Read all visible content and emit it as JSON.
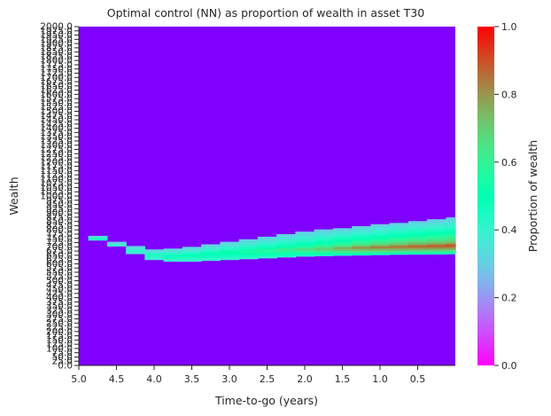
{
  "chart_data": {
    "type": "heatmap",
    "title": "Optimal control (NN) as proportion of wealth in asset T30",
    "xlabel": "Time-to-go (years)",
    "ylabel": "Wealth",
    "colorbar_label": "Proportion of wealth",
    "x_tick_labels": [
      "5.0",
      "4.5",
      "4.0",
      "3.5",
      "3.0",
      "2.5",
      "2.0",
      "1.5",
      "1.0",
      "0.5"
    ],
    "x_tick_values": [
      5.0,
      4.5,
      4.0,
      3.5,
      3.0,
      2.5,
      2.0,
      1.5,
      1.0,
      0.5
    ],
    "y_tick_labels": [
      "0.0",
      "25.0",
      "50.0",
      "75.0",
      "100.0",
      "125.0",
      "150.0",
      "175.0",
      "200.0",
      "225.0",
      "250.0",
      "275.0",
      "300.0",
      "325.0",
      "350.0",
      "375.0",
      "400.0",
      "425.0",
      "450.0",
      "475.0",
      "500.0",
      "525.0",
      "550.0",
      "575.0",
      "600.0",
      "625.0",
      "650.0",
      "675.0",
      "700.0",
      "725.0",
      "750.0",
      "775.0",
      "800.0",
      "825.0",
      "850.0",
      "875.0",
      "900.0",
      "925.0",
      "950.0",
      "975.0",
      "1000.0",
      "1025.0",
      "1050.0",
      "1075.0",
      "1100.0",
      "1125.0",
      "1150.0",
      "1175.0",
      "1200.0",
      "1225.0",
      "1250.0",
      "1275.0",
      "1300.0",
      "1325.0",
      "1350.0",
      "1375.0",
      "1400.0",
      "1425.0",
      "1450.0",
      "1475.0",
      "1500.0",
      "1525.0",
      "1550.0",
      "1575.0",
      "1600.0",
      "1625.0",
      "1650.0",
      "1675.0",
      "1700.0",
      "1725.0",
      "1750.0",
      "1775.0",
      "1800.0",
      "1825.0",
      "1850.0",
      "1875.0",
      "1900.0",
      "1925.0",
      "1950.0",
      "1975.0",
      "2000.0"
    ],
    "x_range": [
      5.0,
      0.0
    ],
    "y_range": [
      0,
      2000
    ],
    "colorbar_ticks": [
      "0.0",
      "0.2",
      "0.4",
      "0.6",
      "0.8",
      "1.0"
    ],
    "colorbar_range": [
      0.0,
      1.0
    ],
    "colormap": "rainbow",
    "background_value": 0.0,
    "time_columns": [
      4.75,
      4.5,
      4.25,
      4.0,
      3.75,
      3.5,
      3.25,
      3.0,
      2.75,
      2.5,
      2.25,
      2.0,
      1.75,
      1.5,
      1.25,
      1.0,
      0.75,
      0.5,
      0.25,
      0.0
    ],
    "band": [
      {
        "t": 4.75,
        "w_low": 740,
        "w_high": 765,
        "peak_wealth": 752,
        "peak_value": 0.48
      },
      {
        "t": 4.5,
        "w_low": 705,
        "w_high": 730,
        "peak_wealth": 718,
        "peak_value": 0.38
      },
      {
        "t": 4.25,
        "w_low": 660,
        "w_high": 705,
        "peak_wealth": 684,
        "peak_value": 0.42
      },
      {
        "t": 4.0,
        "w_low": 625,
        "w_high": 685,
        "peak_wealth": 660,
        "peak_value": 0.46
      },
      {
        "t": 3.75,
        "w_low": 615,
        "w_high": 690,
        "peak_wealth": 655,
        "peak_value": 0.49
      },
      {
        "t": 3.5,
        "w_low": 615,
        "w_high": 700,
        "peak_wealth": 660,
        "peak_value": 0.5
      },
      {
        "t": 3.25,
        "w_low": 620,
        "w_high": 715,
        "peak_wealth": 668,
        "peak_value": 0.52
      },
      {
        "t": 3.0,
        "w_low": 625,
        "w_high": 730,
        "peak_wealth": 675,
        "peak_value": 0.54
      },
      {
        "t": 2.75,
        "w_low": 630,
        "w_high": 745,
        "peak_wealth": 680,
        "peak_value": 0.57
      },
      {
        "t": 2.5,
        "w_low": 635,
        "w_high": 760,
        "peak_wealth": 685,
        "peak_value": 0.6
      },
      {
        "t": 2.25,
        "w_low": 640,
        "w_high": 775,
        "peak_wealth": 690,
        "peak_value": 0.63
      },
      {
        "t": 2.0,
        "w_low": 645,
        "w_high": 790,
        "peak_wealth": 692,
        "peak_value": 0.67
      },
      {
        "t": 1.75,
        "w_low": 648,
        "w_high": 800,
        "peak_wealth": 695,
        "peak_value": 0.72
      },
      {
        "t": 1.5,
        "w_low": 650,
        "w_high": 810,
        "peak_wealth": 697,
        "peak_value": 0.78
      },
      {
        "t": 1.25,
        "w_low": 652,
        "w_high": 820,
        "peak_wealth": 700,
        "peak_value": 0.83
      },
      {
        "t": 1.0,
        "w_low": 654,
        "w_high": 830,
        "peak_wealth": 703,
        "peak_value": 0.86
      },
      {
        "t": 0.75,
        "w_low": 656,
        "w_high": 840,
        "peak_wealth": 706,
        "peak_value": 0.88
      },
      {
        "t": 0.5,
        "w_low": 657,
        "w_high": 850,
        "peak_wealth": 708,
        "peak_value": 0.9
      },
      {
        "t": 0.25,
        "w_low": 658,
        "w_high": 860,
        "peak_wealth": 710,
        "peak_value": 0.91
      },
      {
        "t": 0.0,
        "w_low": 659,
        "w_high": 870,
        "peak_wealth": 712,
        "peak_value": 0.92
      }
    ],
    "grid": false,
    "legend": "colorbar-right"
  }
}
